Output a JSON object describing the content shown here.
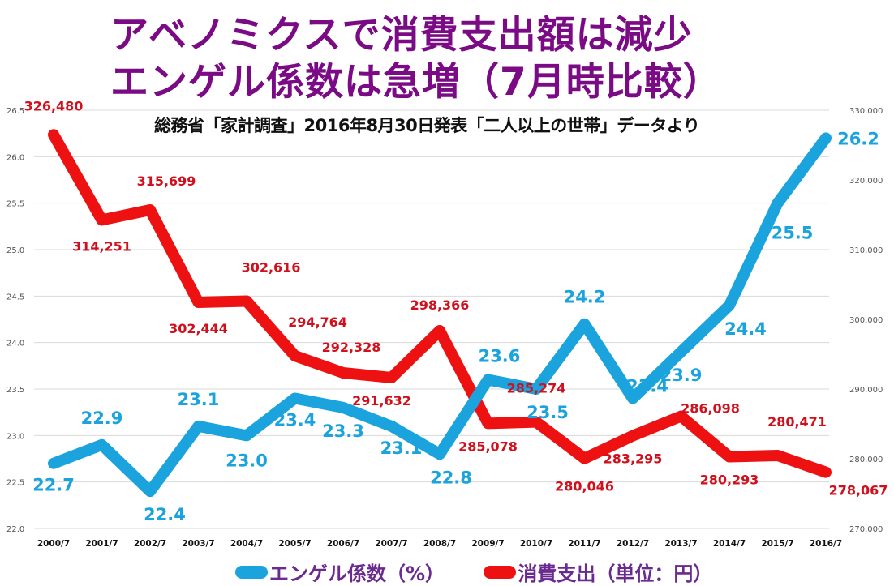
{
  "chart_data": {
    "type": "line",
    "title": "アベノミクスで消費支出額は減少\nエンゲル係数は急増（7月時比較）",
    "title_lines": [
      "アベノミクスで消費支出額は減少",
      "エンゲル係数は急増（7月時比較）"
    ],
    "subtitle": "総務省「家計調査」2016年8月30日発表「二人以上の世帯」データより",
    "categories": [
      "2000/7",
      "2001/7",
      "2002/7",
      "2003/7",
      "2004/7",
      "2005/7",
      "2006/7",
      "2007/7",
      "2008/7",
      "2009/7",
      "2010/7",
      "2011/7",
      "2012/7",
      "2013/7",
      "2014/7",
      "2015/7",
      "2016/7"
    ],
    "series": [
      {
        "name": "エンゲル係数（%）",
        "axis": "left",
        "color": "#1aa3dc",
        "values": [
          22.7,
          22.9,
          22.4,
          23.1,
          23.0,
          23.4,
          23.3,
          23.1,
          22.8,
          23.6,
          23.5,
          24.2,
          23.4,
          23.9,
          24.4,
          25.5,
          26.2
        ],
        "labels": [
          "22.7",
          "22.9",
          "22.4",
          "23.1",
          "23.0",
          "23.4",
          "23.3",
          "23.1",
          "22.8",
          "23.6",
          "23.5",
          "24.2",
          "23.4",
          "23.9",
          "24.4",
          "25.5",
          "26.2"
        ]
      },
      {
        "name": "消費支出（単位：円）",
        "axis": "right",
        "color": "#ee1111",
        "values": [
          326480,
          314251,
          315699,
          302444,
          302616,
          294764,
          292328,
          291632,
          298366,
          285078,
          285274,
          280046,
          283295,
          286098,
          280293,
          280471,
          278067
        ],
        "labels": [
          "326,480",
          "314,251",
          "315,699",
          "302,444",
          "302,616",
          "294,764",
          "292,328",
          "291,632",
          "298,366",
          "285,078",
          "285,274",
          "280,046",
          "283,295",
          "286,098",
          "280,293",
          "280,471",
          "278,067"
        ]
      }
    ],
    "y_left": {
      "ylim": [
        22.0,
        26.5
      ],
      "ticks": [
        "22.0",
        "22.5",
        "23.0",
        "23.5",
        "24.0",
        "24.5",
        "25.0",
        "25.5",
        "26.0",
        "26.5"
      ]
    },
    "y_right": {
      "ylim": [
        270000,
        330000
      ],
      "ticks": [
        "270,000",
        "280,000",
        "290,000",
        "300,000",
        "310,000",
        "320,000",
        "330,000"
      ]
    },
    "xlabel": "",
    "ylabel": "",
    "grid": true,
    "legend": "bottom"
  }
}
